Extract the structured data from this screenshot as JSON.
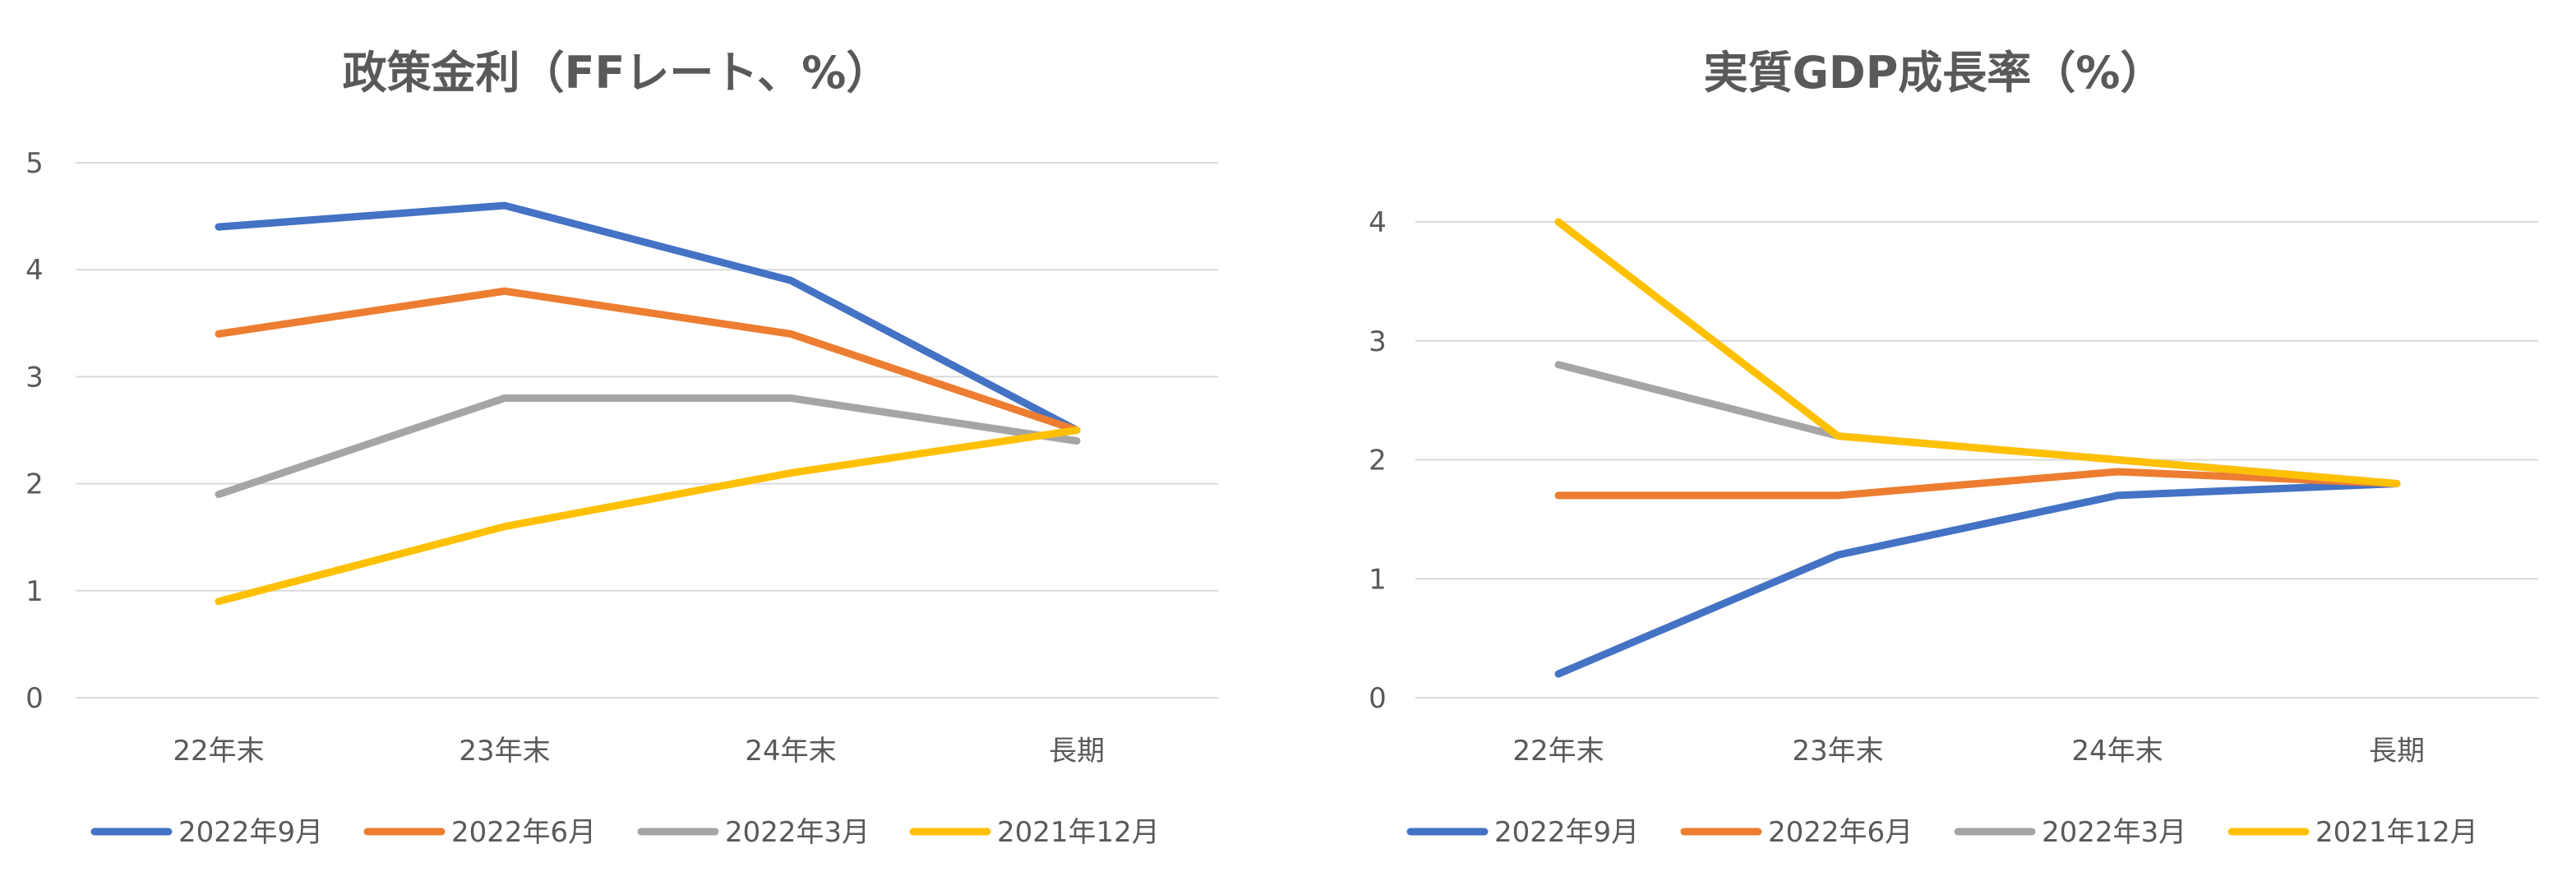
{
  "colors": {
    "2022年9月": "#4472C4",
    "2022年6月": "#ED7D31",
    "2022年3月": "#A5A5A5",
    "2021年12月": "#FFC000",
    "text": "#595959",
    "grid": "#D9D9D9"
  },
  "chart_data": [
    {
      "type": "line",
      "title": "政策金利（FFレート、%）",
      "categories": [
        "22年末",
        "23年末",
        "24年末",
        "長期"
      ],
      "ylim": [
        0,
        5
      ],
      "yticks": [
        "0",
        "1",
        "2",
        "3",
        "4",
        "5"
      ],
      "grid": true,
      "legend": "bottom",
      "series": [
        {
          "name": "2022年9月",
          "values": [
            4.4,
            4.6,
            3.9,
            2.5
          ]
        },
        {
          "name": "2022年6月",
          "values": [
            3.4,
            3.8,
            3.4,
            2.5
          ]
        },
        {
          "name": "2022年3月",
          "values": [
            1.9,
            2.8,
            2.8,
            2.4
          ]
        },
        {
          "name": "2021年12月",
          "values": [
            0.9,
            1.6,
            2.1,
            2.5
          ]
        }
      ]
    },
    {
      "type": "line",
      "title": "実質GDP成長率（%）",
      "categories": [
        "22年末",
        "23年末",
        "24年末",
        "長期"
      ],
      "ylim": [
        0,
        4
      ],
      "yticks": [
        "0",
        "1",
        "2",
        "3",
        "4"
      ],
      "grid": true,
      "legend": "bottom",
      "series": [
        {
          "name": "2022年9月",
          "values": [
            0.2,
            1.2,
            1.7,
            1.8
          ]
        },
        {
          "name": "2022年6月",
          "values": [
            1.7,
            1.7,
            1.9,
            1.8
          ]
        },
        {
          "name": "2022年3月",
          "values": [
            2.8,
            2.2,
            2.0,
            1.8
          ]
        },
        {
          "name": "2021年12月",
          "values": [
            4.0,
            2.2,
            2.0,
            1.8
          ]
        }
      ]
    }
  ]
}
